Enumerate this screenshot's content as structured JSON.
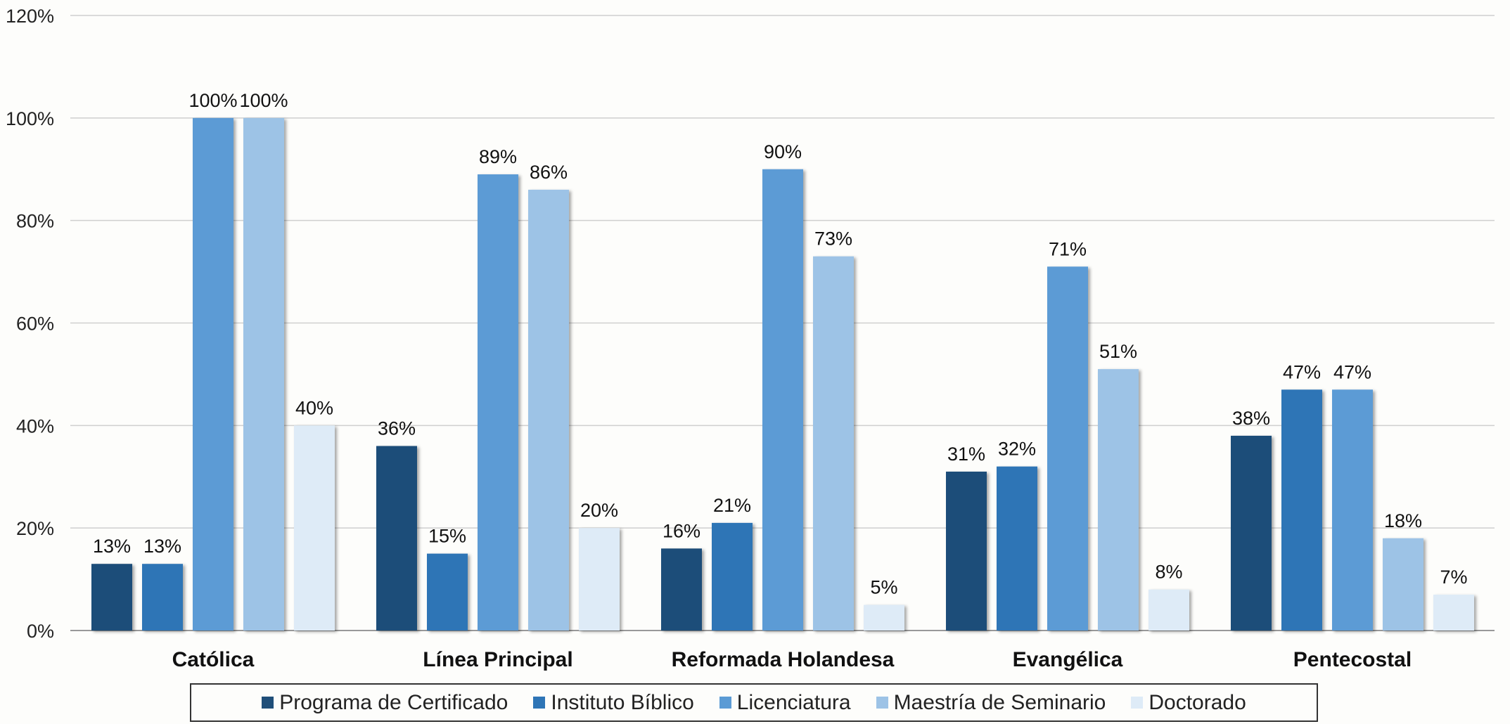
{
  "chart_data": {
    "type": "bar",
    "title": "",
    "xlabel": "",
    "ylabel": "",
    "ylim": [
      0,
      120
    ],
    "yticks": [
      "0%",
      "20%",
      "40%",
      "60%",
      "80%",
      "100%",
      "120%"
    ],
    "ytick_values": [
      0,
      20,
      40,
      60,
      80,
      100,
      120
    ],
    "grid": true,
    "legend_position": "bottom",
    "value_suffix": "%",
    "categories": [
      "Católica",
      "Línea Principal",
      "Reformada Holandesa",
      "Evangélica",
      "Pentecostal"
    ],
    "series": [
      {
        "name": "Programa de Certificado",
        "color": "#1f4e79",
        "values": [
          13,
          36,
          16,
          31,
          38
        ]
      },
      {
        "name": "Instituto Bíblico",
        "color": "#2e75b6",
        "values": [
          13,
          15,
          21,
          32,
          47
        ]
      },
      {
        "name": "Licenciatura",
        "color": "#5b9bd5",
        "values": [
          100,
          89,
          90,
          71,
          47
        ]
      },
      {
        "name": "Maestría de Seminario",
        "color": "#9dc3e6",
        "values": [
          100,
          86,
          73,
          51,
          18
        ]
      },
      {
        "name": "Doctorado",
        "color": "#deebf7",
        "values": [
          40,
          20,
          5,
          8,
          7
        ]
      }
    ]
  }
}
